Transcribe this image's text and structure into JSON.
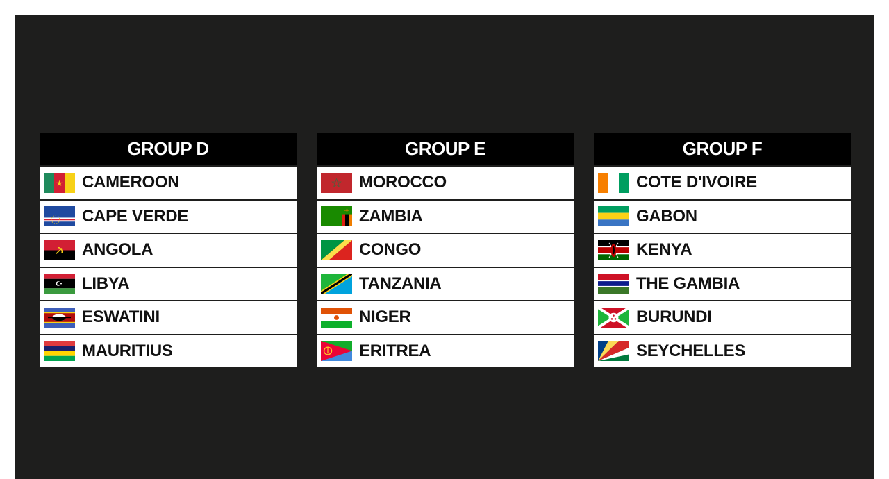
{
  "groups": [
    {
      "title": "GROUP D",
      "teams": [
        {
          "name": "CAMEROON",
          "flag": "cameroon-flag"
        },
        {
          "name": "CAPE VERDE",
          "flag": "cape-verde-flag"
        },
        {
          "name": "ANGOLA",
          "flag": "angola-flag"
        },
        {
          "name": "LIBYA",
          "flag": "libya-flag"
        },
        {
          "name": "ESWATINI",
          "flag": "eswatini-flag"
        },
        {
          "name": "MAURITIUS",
          "flag": "mauritius-flag"
        }
      ]
    },
    {
      "title": "GROUP E",
      "teams": [
        {
          "name": "MOROCCO",
          "flag": "morocco-flag"
        },
        {
          "name": "ZAMBIA",
          "flag": "zambia-flag"
        },
        {
          "name": "CONGO",
          "flag": "congo-flag"
        },
        {
          "name": "TANZANIA",
          "flag": "tanzania-flag"
        },
        {
          "name": "NIGER",
          "flag": "niger-flag"
        },
        {
          "name": "ERITREA",
          "flag": "eritrea-flag"
        }
      ]
    },
    {
      "title": "GROUP F",
      "teams": [
        {
          "name": "COTE D'IVOIRE",
          "flag": "cote-divoire-flag"
        },
        {
          "name": "GABON",
          "flag": "gabon-flag"
        },
        {
          "name": "KENYA",
          "flag": "kenya-flag"
        },
        {
          "name": "THE GAMBIA",
          "flag": "gambia-flag"
        },
        {
          "name": "BURUNDI",
          "flag": "burundi-flag"
        },
        {
          "name": "SEYCHELLES",
          "flag": "seychelles-flag"
        }
      ]
    }
  ]
}
